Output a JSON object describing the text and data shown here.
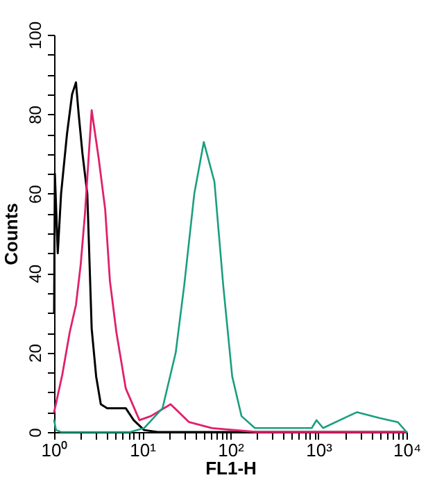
{
  "chart_data": {
    "type": "line",
    "xlabel": "FL1-H",
    "ylabel": "Counts",
    "log": "x",
    "grid": false,
    "marker": "none",
    "line_style": "solid",
    "xlim": [
      1,
      10000
    ],
    "ylim": [
      0,
      100
    ],
    "xticks": [
      {
        "value": 1,
        "label": "10⁰"
      },
      {
        "value": 2,
        "label": null
      },
      {
        "value": 3,
        "label": null
      },
      {
        "value": 4,
        "label": null
      },
      {
        "value": 5,
        "label": null
      },
      {
        "value": 6,
        "label": null
      },
      {
        "value": 7,
        "label": null
      },
      {
        "value": 8,
        "label": null
      },
      {
        "value": 9,
        "label": null
      },
      {
        "value": 10,
        "label": "10¹"
      },
      {
        "value": 20,
        "label": null
      },
      {
        "value": 30,
        "label": null
      },
      {
        "value": 40,
        "label": null
      },
      {
        "value": 50,
        "label": null
      },
      {
        "value": 60,
        "label": null
      },
      {
        "value": 70,
        "label": null
      },
      {
        "value": 80,
        "label": null
      },
      {
        "value": 90,
        "label": null
      },
      {
        "value": 100,
        "label": "10²"
      },
      {
        "value": 200,
        "label": null
      },
      {
        "value": 300,
        "label": null
      },
      {
        "value": 400,
        "label": null
      },
      {
        "value": 500,
        "label": null
      },
      {
        "value": 600,
        "label": null
      },
      {
        "value": 700,
        "label": null
      },
      {
        "value": 800,
        "label": null
      },
      {
        "value": 900,
        "label": null
      },
      {
        "value": 1000,
        "label": "10³"
      },
      {
        "value": 2000,
        "label": null
      },
      {
        "value": 3000,
        "label": null
      },
      {
        "value": 4000,
        "label": null
      },
      {
        "value": 5000,
        "label": null
      },
      {
        "value": 6000,
        "label": null
      },
      {
        "value": 7000,
        "label": null
      },
      {
        "value": 8000,
        "label": null
      },
      {
        "value": 9000,
        "label": null
      },
      {
        "value": 10000,
        "label": "10⁴"
      }
    ],
    "yticks": [
      0,
      {
        "value": 5,
        "label": null
      },
      {
        "value": 10,
        "label": null
      },
      {
        "value": 15,
        "label": null
      },
      20,
      {
        "value": 25,
        "label": null
      },
      {
        "value": 30,
        "label": null
      },
      {
        "value": 35,
        "label": null
      },
      40,
      {
        "value": 45,
        "label": null
      },
      {
        "value": 50,
        "label": null
      },
      {
        "value": 55,
        "label": null
      },
      60,
      {
        "value": 65,
        "label": null
      },
      {
        "value": 70,
        "label": null
      },
      {
        "value": 75,
        "label": null
      },
      80,
      {
        "value": 85,
        "label": null
      },
      {
        "value": 90,
        "label": null
      },
      {
        "value": 95,
        "label": null
      },
      100
    ],
    "series": [
      {
        "color": "#000000",
        "x": [
          1.0,
          1.02,
          1.1,
          1.2,
          1.4,
          1.6,
          1.77,
          1.9,
          2.1,
          2.38,
          2.67,
          3.0,
          3.39,
          4.0,
          5.0,
          6.5,
          8.0,
          10.5,
          15,
          100,
          1000,
          10000
        ],
        "values": [
          30,
          65,
          45,
          60,
          75,
          85,
          88,
          80,
          70,
          60,
          26,
          14,
          7,
          6,
          6,
          6,
          3,
          0.5,
          0,
          0,
          0,
          0
        ]
      },
      {
        "color": "#e0206a",
        "x": [
          1.0,
          1.24,
          1.5,
          1.77,
          2.0,
          2.24,
          2.67,
          3.2,
          3.8,
          4.3,
          5.1,
          6.5,
          9.3,
          12.5,
          21,
          34,
          62,
          200,
          1000,
          10000
        ],
        "values": [
          5,
          14.5,
          25,
          32,
          42,
          55,
          81,
          69,
          56,
          38,
          25,
          11,
          3,
          4,
          7,
          2.5,
          1,
          0,
          0,
          0
        ]
      },
      {
        "color": "#1a9e80",
        "x": [
          1.0,
          1.05,
          1.2,
          2,
          7.3,
          10.5,
          17,
          24,
          30,
          39,
          50,
          66,
          83,
          105,
          134,
          190,
          500,
          840,
          950,
          1130,
          2180,
          2750,
          5000,
          7960,
          10000
        ],
        "values": [
          3,
          0.5,
          0,
          0,
          0,
          1,
          6,
          20,
          37,
          60,
          73,
          63,
          37,
          14,
          4,
          1,
          1,
          1,
          3,
          1,
          4,
          5,
          3.5,
          2.5,
          0
        ]
      }
    ]
  }
}
